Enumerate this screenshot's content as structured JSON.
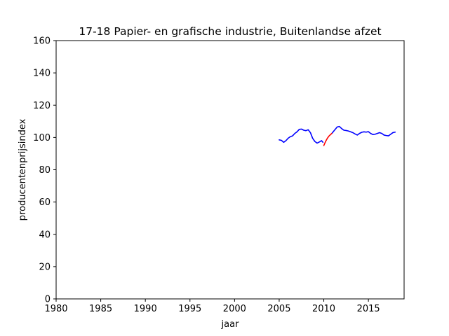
{
  "chart_data": {
    "type": "line",
    "title": "17-18 Papier- en grafische industrie, Buitenlandse afzet",
    "xlabel": "jaar",
    "ylabel": "producentenprijsindex",
    "xlim": [
      1980,
      2019
    ],
    "ylim": [
      0,
      160
    ],
    "x_ticks": [
      "1980",
      "1985",
      "1990",
      "1995",
      "2000",
      "2005",
      "2010",
      "2015"
    ],
    "y_ticks": [
      "0",
      "20",
      "40",
      "60",
      "80",
      "100",
      "120",
      "140",
      "160"
    ],
    "grid": false,
    "legend": "none",
    "series": [
      {
        "color": "#0000ff",
        "x": [
          2005.0,
          2005.25,
          2005.5,
          2005.75,
          2006.0,
          2006.25,
          2006.5,
          2006.75,
          2007.0,
          2007.25,
          2007.5,
          2007.75,
          2008.0,
          2008.25,
          2008.5,
          2008.75,
          2009.0,
          2009.25,
          2009.5,
          2009.75,
          2009.9
        ],
        "y": [
          98.5,
          98.2,
          97.0,
          98.0,
          99.5,
          100.5,
          101.0,
          102.5,
          103.5,
          105.0,
          105.2,
          104.5,
          104.2,
          104.8,
          103.0,
          99.5,
          97.5,
          96.5,
          97.2,
          98.0,
          97.0
        ]
      },
      {
        "color": "#ff0000",
        "x": [
          2010.0,
          2010.2,
          2010.4,
          2010.6,
          2010.8,
          2010.95
        ],
        "y": [
          95.0,
          97.5,
          99.5,
          101.0,
          102.0,
          102.8
        ]
      },
      {
        "color": "#0000ff",
        "x": [
          2010.95,
          2011.2,
          2011.5,
          2011.75,
          2012.0,
          2012.25,
          2012.5,
          2012.75,
          2013.0,
          2013.25,
          2013.5,
          2013.75,
          2014.0,
          2014.25,
          2014.5,
          2014.75,
          2015.0,
          2015.25,
          2015.5,
          2015.75,
          2016.0,
          2016.25,
          2016.5,
          2016.75,
          2017.0,
          2017.25,
          2017.5,
          2017.75,
          2018.0
        ],
        "y": [
          102.8,
          104.5,
          106.5,
          106.8,
          105.5,
          104.5,
          104.3,
          104.0,
          103.5,
          103.0,
          102.2,
          101.5,
          102.5,
          103.2,
          103.5,
          103.3,
          103.6,
          102.5,
          101.8,
          102.0,
          102.5,
          103.0,
          102.5,
          101.5,
          101.2,
          101.0,
          102.0,
          103.0,
          103.3
        ]
      }
    ]
  }
}
